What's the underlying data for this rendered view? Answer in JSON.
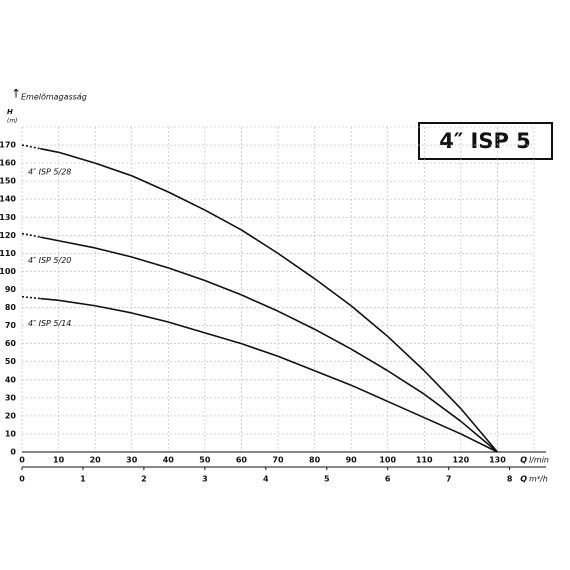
{
  "chart_data": {
    "type": "line",
    "title": "4″ ISP 5",
    "y_label": "Emelõmagasság",
    "y_symbol": "H",
    "y_unit": "(m)",
    "x_symbol": "Q",
    "x_unit": "l/min",
    "x2_symbol": "Q",
    "x2_unit": "m³/h",
    "xlim": [
      0,
      140
    ],
    "xticks": [
      0,
      10,
      20,
      30,
      40,
      50,
      60,
      70,
      80,
      90,
      100,
      110,
      120,
      130
    ],
    "x2lim": [
      0,
      8.4
    ],
    "x2ticks": [
      0,
      1,
      2,
      3,
      4,
      5,
      6,
      7,
      8
    ],
    "ylim": [
      0,
      180
    ],
    "yticks": [
      0,
      10,
      20,
      30,
      40,
      50,
      60,
      70,
      80,
      90,
      100,
      110,
      120,
      130,
      140,
      150,
      160,
      170
    ],
    "grid": true,
    "series": [
      {
        "name": "4″ ISP 5/28",
        "color": "#111111",
        "x": [
          0,
          5,
          10,
          20,
          30,
          40,
          50,
          60,
          70,
          80,
          90,
          100,
          110,
          120,
          130
        ],
        "values": [
          170,
          168,
          166,
          160,
          153,
          144,
          134,
          123,
          110,
          96,
          81,
          64,
          45,
          24,
          0
        ]
      },
      {
        "name": "4″ ISP 5/20",
        "color": "#111111",
        "x": [
          0,
          5,
          10,
          20,
          30,
          40,
          50,
          60,
          70,
          80,
          90,
          100,
          110,
          120,
          130
        ],
        "values": [
          121,
          119,
          117,
          113,
          108,
          102,
          95,
          87,
          78,
          68,
          57,
          45,
          32,
          17,
          0
        ]
      },
      {
        "name": "4″ ISP 5/14",
        "color": "#111111",
        "x": [
          0,
          5,
          10,
          20,
          30,
          40,
          50,
          60,
          70,
          80,
          90,
          100,
          110,
          120,
          130
        ],
        "values": [
          86,
          85,
          84,
          81,
          77,
          72,
          66,
          60,
          53,
          45,
          37,
          28,
          19,
          10,
          0
        ]
      }
    ]
  }
}
